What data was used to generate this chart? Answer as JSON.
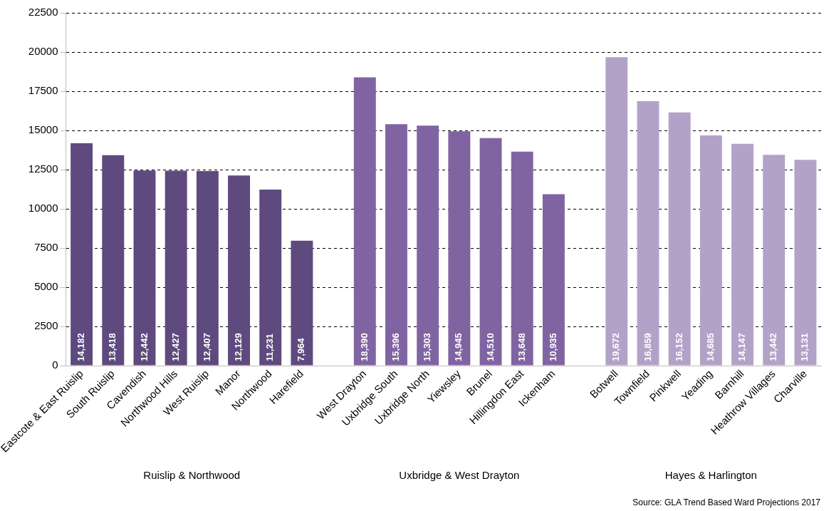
{
  "chart_data": {
    "type": "bar",
    "categories": [
      "Eastcote & East Ruislip",
      "South Ruislip",
      "Cavendish",
      "Northwood Hills",
      "West Ruislip",
      "Manor",
      "Northwood",
      "Harefield",
      null,
      "West Drayton",
      "Uxbridge South",
      "Uxbridge North",
      "Yiewsley",
      "Brunel",
      "Hillingdon East",
      "Ickenham",
      null,
      "Botwell",
      "Townfield",
      "Pinkwell",
      "Yeading",
      "Barnhill",
      "Heathrow Villages",
      "Charville"
    ],
    "values": [
      14182,
      13418,
      12442,
      12427,
      12407,
      12129,
      11231,
      7964,
      null,
      18390,
      15396,
      15303,
      14945,
      14510,
      13648,
      10935,
      null,
      19672,
      16859,
      16152,
      14685,
      14147,
      13442,
      13131
    ],
    "colors": [
      "#5e4a7e",
      "#5e4a7e",
      "#5e4a7e",
      "#5e4a7e",
      "#5e4a7e",
      "#5e4a7e",
      "#5e4a7e",
      "#5e4a7e",
      null,
      "#8064a2",
      "#8064a2",
      "#8064a2",
      "#8064a2",
      "#8064a2",
      "#8064a2",
      "#8064a2",
      null,
      "#b3a2c7",
      "#b3a2c7",
      "#b3a2c7",
      "#b3a2c7",
      "#b3a2c7",
      "#b3a2c7",
      "#b3a2c7"
    ],
    "ylim": [
      0,
      22500
    ],
    "yticks": [
      0,
      2500,
      5000,
      7500,
      10000,
      12500,
      15000,
      17500,
      20000,
      22500
    ],
    "value_labels": [
      "14,182",
      "13,418",
      "12,442",
      "12,427",
      "12,407",
      "12,129",
      "11,231",
      "7,964",
      null,
      "18,390",
      "15,396",
      "15,303",
      "14,945",
      "14,510",
      "13,648",
      "10,935",
      null,
      "19,672",
      "16,859",
      "16,152",
      "14,685",
      "14,147",
      "13,442",
      "13,131"
    ],
    "grid": "y",
    "annotations": [
      "Ruislip & Northwood",
      "Uxbridge & West Drayton",
      "Hayes & Harlington",
      "Source: GLA Trend Based Ward Projections 2017"
    ]
  }
}
